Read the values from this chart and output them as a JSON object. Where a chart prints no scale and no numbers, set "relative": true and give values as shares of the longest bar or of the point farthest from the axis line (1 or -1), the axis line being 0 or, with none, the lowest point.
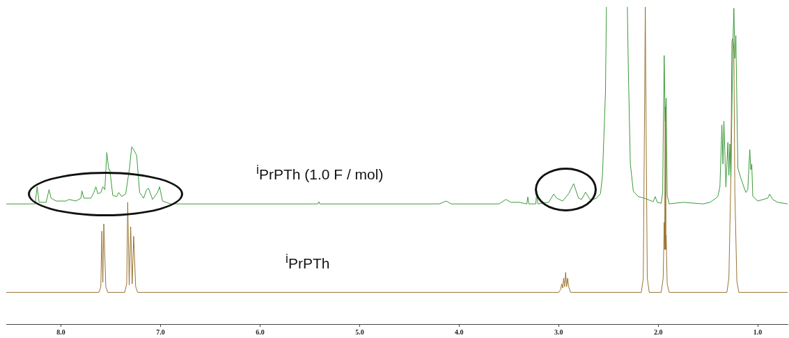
{
  "chart_data": {
    "type": "line",
    "relative": true,
    "marker": "none",
    "legend": false,
    "grid": false,
    "tick_labels": "x",
    "xlim": [
      8.55,
      0.7
    ],
    "xticks": [
      {
        "value": 8.0,
        "label": "8.0"
      },
      {
        "value": 7.0,
        "label": "7.0"
      },
      {
        "value": 6.0,
        "label": "6.0"
      },
      {
        "value": 5.0,
        "label": "5.0"
      },
      {
        "value": 4.0,
        "label": "4.0"
      },
      {
        "value": 3.0,
        "label": "3.0"
      },
      {
        "value": 2.0,
        "label": "2.0"
      },
      {
        "value": 1.0,
        "label": "1.0"
      }
    ],
    "series": [
      {
        "name": "$^{i}$PrPTh (1.0 F / mol)",
        "color": "#3a9a3a",
        "x": [
          8.55,
          8.3,
          8.26,
          8.24,
          8.22,
          8.15,
          8.12,
          8.1,
          8.05,
          7.95,
          7.92,
          7.85,
          7.8,
          7.79,
          7.77,
          7.7,
          7.67,
          7.65,
          7.63,
          7.6,
          7.58,
          7.56,
          7.54,
          7.52,
          7.51,
          7.48,
          7.44,
          7.42,
          7.39,
          7.35,
          7.31,
          7.29,
          7.27,
          7.24,
          7.21,
          7.17,
          7.14,
          7.12,
          7.08,
          7.03,
          7.01,
          6.98,
          6.9,
          6.5,
          5.42,
          5.41,
          5.4,
          4.2,
          4.13,
          4.08,
          3.6,
          3.53,
          3.48,
          3.4,
          3.32,
          3.31,
          3.3,
          3.23,
          3.22,
          3.21,
          3.1,
          3.05,
          3.02,
          2.96,
          2.9,
          2.85,
          2.8,
          2.77,
          2.73,
          2.68,
          2.62,
          2.58,
          2.56,
          2.54,
          2.53,
          2.52,
          2.45,
          2.31,
          2.3,
          2.28,
          2.25,
          2.2,
          2.14,
          2.05,
          2.03,
          2.01,
          1.97,
          1.955,
          1.95,
          1.94,
          1.93,
          1.92,
          1.91,
          1.89,
          1.75,
          1.55,
          1.48,
          1.42,
          1.4,
          1.38,
          1.36,
          1.35,
          1.34,
          1.32,
          1.3,
          1.29,
          1.28,
          1.27,
          1.25,
          1.24,
          1.23,
          1.22,
          1.2,
          1.17,
          1.12,
          1.1,
          1.08,
          1.07,
          1.06,
          1.05,
          1.0,
          0.9,
          0.88,
          0.85,
          0.8,
          0.7
        ],
        "values": [
          0.379,
          0.379,
          0.379,
          0.433,
          0.384,
          0.384,
          0.424,
          0.397,
          0.388,
          0.388,
          0.393,
          0.388,
          0.397,
          0.42,
          0.397,
          0.397,
          0.415,
          0.433,
          0.411,
          0.415,
          0.433,
          0.424,
          0.541,
          0.487,
          0.487,
          0.406,
          0.402,
          0.415,
          0.402,
          0.411,
          0.496,
          0.559,
          0.55,
          0.532,
          0.415,
          0.397,
          0.424,
          0.428,
          0.393,
          0.415,
          0.433,
          0.388,
          0.379,
          0.379,
          0.379,
          0.386,
          0.379,
          0.379,
          0.388,
          0.379,
          0.379,
          0.393,
          0.384,
          0.384,
          0.379,
          0.401,
          0.379,
          0.379,
          0.419,
          0.379,
          0.384,
          0.41,
          0.397,
          0.388,
          0.411,
          0.443,
          0.397,
          0.393,
          0.416,
          0.39,
          0.397,
          0.411,
          0.469,
          0.64,
          0.73,
          1,
          null,
          1,
          0.802,
          0.505,
          0.419,
          0.402,
          0.397,
          0.386,
          0.402,
          0.384,
          0.381,
          0.415,
          0.577,
          0.847,
          0.64,
          0.712,
          0.406,
          0.379,
          0.384,
          0.379,
          0.384,
          0.397,
          0.403,
          0.433,
          0.628,
          0.505,
          0.64,
          0.432,
          0.573,
          0.469,
          0.568,
          0.46,
          0.874,
          0.996,
          0.838,
          0.91,
          0.492,
          0.46,
          0.415,
          0.424,
          0.55,
          0.487,
          0.505,
          0.403,
          0.388,
          0.397,
          0.41,
          0.393,
          0.384,
          0.379
        ]
      },
      {
        "name": "$^{i}$PrPTh",
        "color": "#9a7330",
        "x": [
          8.55,
          7.62,
          7.6,
          7.59,
          7.58,
          7.57,
          7.55,
          7.53,
          7.36,
          7.34,
          7.33,
          7.315,
          7.3,
          7.285,
          7.27,
          7.25,
          7.23,
          3.0,
          2.98,
          2.97,
          2.96,
          2.95,
          2.94,
          2.93,
          2.92,
          2.91,
          2.9,
          2.88,
          2.17,
          2.15,
          2.14,
          2.13,
          2.12,
          2.11,
          2.09,
          1.97,
          1.95,
          1.94,
          1.935,
          1.93,
          1.925,
          1.92,
          1.91,
          1.89,
          1.31,
          1.29,
          1.27,
          1.26,
          1.25,
          1.24,
          1.23,
          1.21,
          1.19,
          0.7
        ],
        "values": [
          0.1,
          0.1,
          0.118,
          0.293,
          0.132,
          0.316,
          0.118,
          0.1,
          0.1,
          0.127,
          0.384,
          0.123,
          0.307,
          0.127,
          0.277,
          0.118,
          0.1,
          0.1,
          0.109,
          0.127,
          0.114,
          0.145,
          0.118,
          0.163,
          0.118,
          0.145,
          0.118,
          0.1,
          0.1,
          0.145,
          0.55,
          1,
          0.55,
          0.145,
          0.1,
          0.1,
          0.145,
          0.321,
          0.235,
          0.685,
          0.235,
          0.28,
          0.127,
          0.1,
          0.1,
          0.145,
          0.46,
          0.892,
          0.901,
          0.865,
          0.415,
          0.136,
          0.1,
          0.1
        ]
      }
    ]
  }
}
